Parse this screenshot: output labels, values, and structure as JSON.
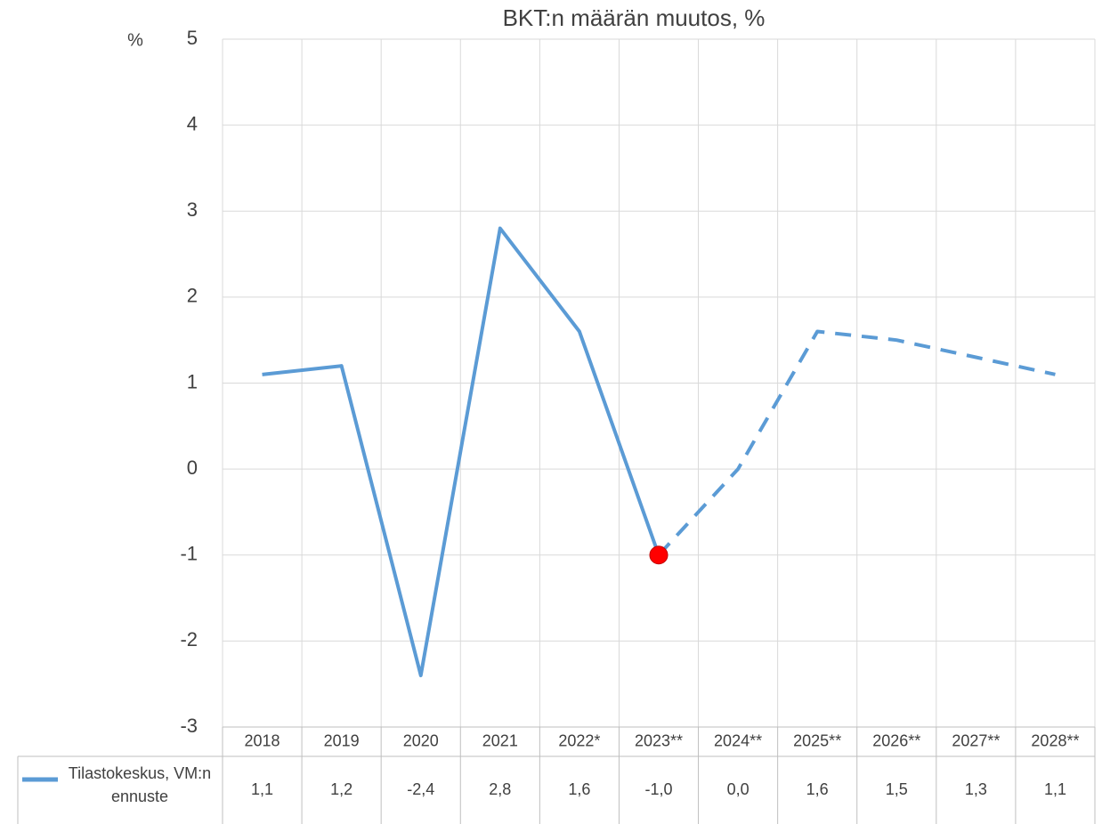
{
  "chart_data": {
    "type": "line",
    "title": "BKT:n määrän muutos, %",
    "y_unit": "%",
    "categories": [
      "2018",
      "2019",
      "2020",
      "2021",
      "2022*",
      "2023**",
      "2024**",
      "2025**",
      "2026**",
      "2027**",
      "2028**"
    ],
    "series": [
      {
        "name": "Tilastokeskus, VM:n ennuste",
        "color": "#5b9bd5",
        "values": [
          1.1,
          1.2,
          -2.4,
          2.8,
          1.6,
          -1.0,
          0.0,
          1.6,
          1.5,
          1.3,
          1.1
        ],
        "value_labels": [
          "1,1",
          "1,2",
          "-2,4",
          "2,8",
          "1,6",
          "-1,0",
          "0,0",
          "1,6",
          "1,5",
          "1,3",
          "1,1"
        ],
        "dashed_from": "2023**",
        "marker": {
          "category": "2023**",
          "color": "#ff0000"
        }
      }
    ],
    "ylim": [
      -3,
      5
    ],
    "yticks": [
      -3,
      -2,
      -1,
      0,
      1,
      2,
      3,
      4,
      5
    ],
    "grid": true,
    "data_table": true
  }
}
